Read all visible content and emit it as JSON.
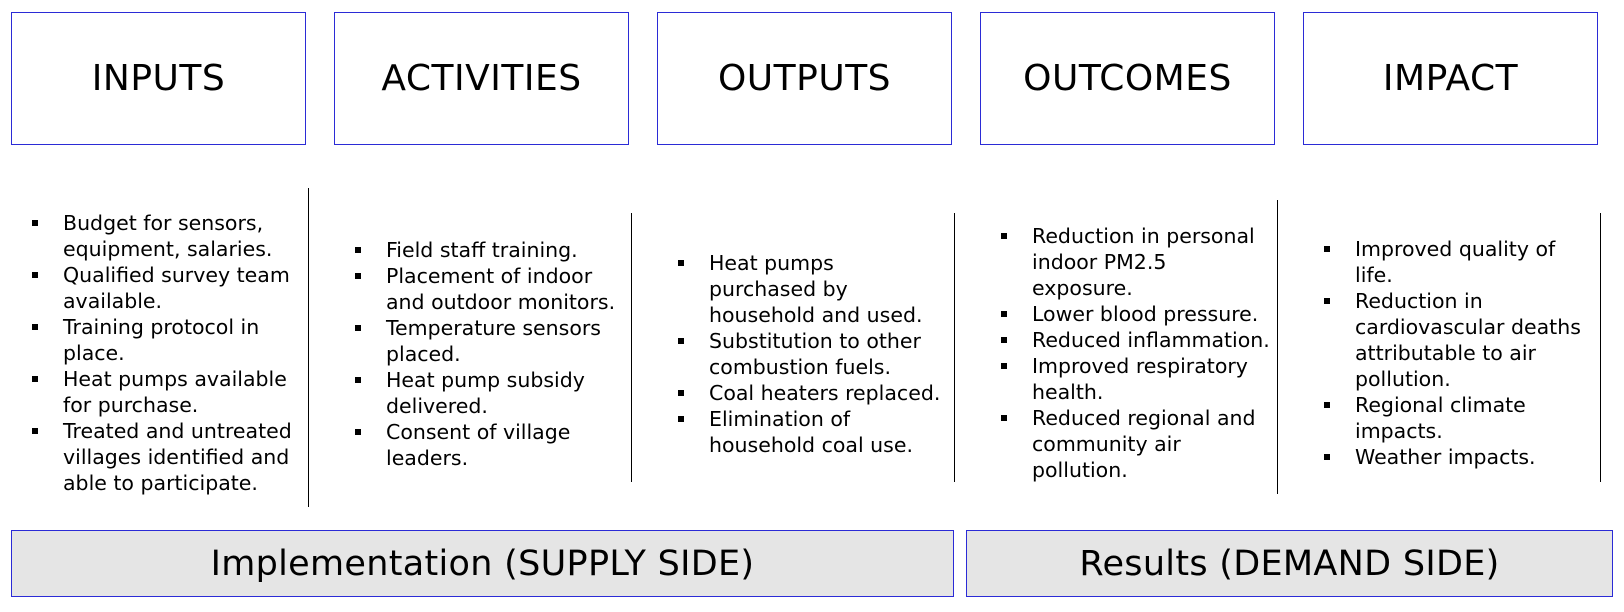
{
  "columns": [
    {
      "title": "INPUTS",
      "items": [
        "Budget for sensors, equipment, salaries.",
        "Qualified survey team available.",
        "Training protocol in place.",
        "Heat pumps available for purchase.",
        "Treated and untreated villages identified and able to participate."
      ]
    },
    {
      "title": "ACTIVITIES",
      "items": [
        "Field staff training.",
        "Placement of indoor and outdoor monitors.",
        "Temperature sensors placed.",
        "Heat pump subsidy delivered.",
        "Consent of village leaders."
      ]
    },
    {
      "title": "OUTPUTS",
      "items": [
        "Heat pumps purchased by household and used.",
        "Substitution to other combustion fuels.",
        "Coal heaters replaced.",
        "Elimination of household coal use."
      ]
    },
    {
      "title": "OUTCOMES",
      "items": [
        "Reduction in personal indoor PM2.5 exposure.",
        "Lower blood pressure.",
        "Reduced inflammation.",
        "Improved respiratory health.",
        "Reduced regional and community air pollution."
      ]
    },
    {
      "title": "IMPACT",
      "items": [
        "Improved quality of life.",
        "Reduction in cardiovascular deaths attributable to air pollution.",
        "Regional climate impacts.",
        "Weather impacts."
      ]
    }
  ],
  "bars": {
    "supply": "Implementation (SUPPLY SIDE)",
    "demand": "Results (DEMAND SIDE)"
  },
  "colors": {
    "box_border": "#2b2bd6",
    "bar_fill": "#e5e5e5"
  }
}
